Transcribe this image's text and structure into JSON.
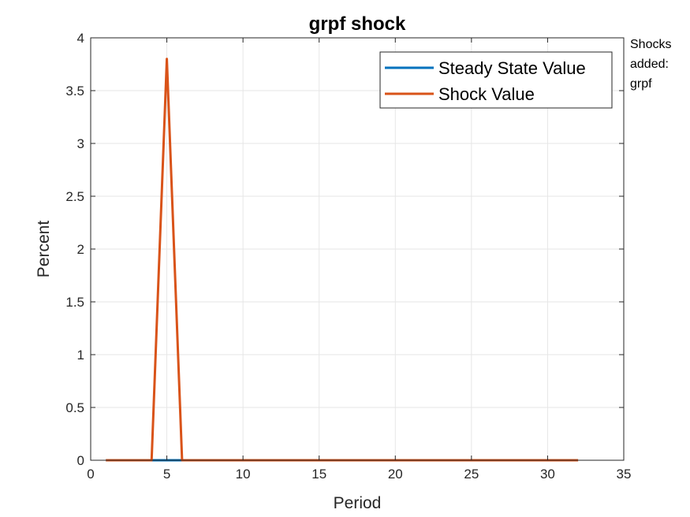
{
  "chart_data": {
    "type": "line",
    "title": "grpf shock",
    "xlabel": "Period",
    "ylabel": "Percent",
    "xlim": [
      0,
      35
    ],
    "ylim": [
      0,
      4
    ],
    "xticks": [
      0,
      5,
      10,
      15,
      20,
      25,
      30,
      35
    ],
    "yticks": [
      0,
      0.5,
      1,
      1.5,
      2,
      2.5,
      3,
      3.5,
      4
    ],
    "xtick_labels": [
      "0",
      "5",
      "10",
      "15",
      "20",
      "25",
      "30",
      "35"
    ],
    "ytick_labels": [
      "0",
      "0.5",
      "1",
      "1.5",
      "2",
      "2.5",
      "3",
      "3.5",
      "4"
    ],
    "grid": true,
    "legend_position": "top-right",
    "series": [
      {
        "name": "Steady State Value",
        "color": "#0072BD",
        "x": [
          1,
          2,
          3,
          4,
          5,
          6,
          7,
          8,
          9,
          10,
          11,
          12,
          13,
          14,
          15,
          16,
          17,
          18,
          19,
          20,
          21,
          22,
          23,
          24,
          25,
          26,
          27,
          28,
          29,
          30,
          31,
          32
        ],
        "y": [
          0,
          0,
          0,
          0,
          0,
          0,
          0,
          0,
          0,
          0,
          0,
          0,
          0,
          0,
          0,
          0,
          0,
          0,
          0,
          0,
          0,
          0,
          0,
          0,
          0,
          0,
          0,
          0,
          0,
          0,
          0,
          0
        ]
      },
      {
        "name": "Shock Value",
        "color": "#D95319",
        "x": [
          1,
          2,
          3,
          4,
          5,
          6,
          7,
          8,
          9,
          10,
          11,
          12,
          13,
          14,
          15,
          16,
          17,
          18,
          19,
          20,
          21,
          22,
          23,
          24,
          25,
          26,
          27,
          28,
          29,
          30,
          31,
          32
        ],
        "y": [
          0,
          0,
          0,
          0,
          3.8,
          0,
          0,
          0,
          0,
          0,
          0,
          0,
          0,
          0,
          0,
          0,
          0,
          0,
          0,
          0,
          0,
          0,
          0,
          0,
          0,
          0,
          0,
          0,
          0,
          0,
          0,
          0
        ]
      }
    ],
    "annotation": [
      "Shocks",
      "added:",
      "grpf"
    ]
  }
}
